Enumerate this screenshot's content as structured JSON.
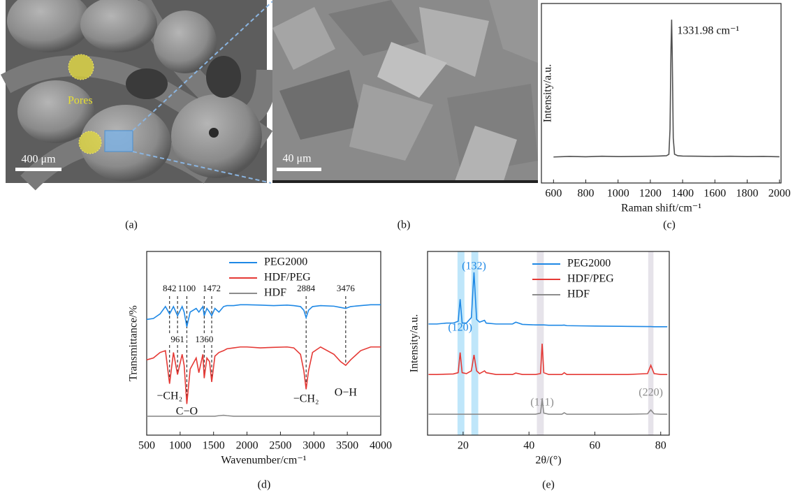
{
  "panel_labels": [
    "(a)",
    "(b)",
    "(c)",
    "(d)",
    "(e)"
  ],
  "images": [
    {
      "annotation": "Pores",
      "scale_bar": "400 μm"
    },
    {
      "scale_bar": "40 μm"
    }
  ],
  "chart_data": [
    {
      "type": "line",
      "xlabel": "Raman shift/cm⁻¹",
      "ylabel": "Intensity/a.u.",
      "color": "#505050",
      "x": [
        600,
        700,
        800,
        900,
        1000,
        1100,
        1200,
        1250,
        1300,
        1315,
        1322,
        1328,
        1332,
        1336,
        1342,
        1350,
        1370,
        1400,
        1500,
        1600,
        1700,
        1800,
        1900,
        2000
      ],
      "values": [
        14.5,
        14.8,
        14.6,
        14.9,
        14.7,
        14.8,
        14.9,
        15,
        15.2,
        16,
        30,
        75,
        91,
        70,
        25,
        16,
        15.2,
        15,
        14.9,
        14.8,
        14.9,
        14.7,
        14.8,
        14.6
      ],
      "xlim": [
        525,
        2010
      ],
      "ylim": [
        0,
        100
      ],
      "xticks": [
        600,
        800,
        1000,
        1200,
        1400,
        1600,
        1800,
        2000
      ],
      "annotations": [
        {
          "text": "1331.98 cm⁻¹",
          "x": 1331.98
        }
      ]
    },
    {
      "type": "line",
      "xlabel": "Wavenumber/cm⁻¹",
      "ylabel": "Transmittance/%",
      "x": [
        500,
        600,
        700,
        780,
        842,
        900,
        961,
        1030,
        1060,
        1100,
        1150,
        1240,
        1280,
        1340,
        1360,
        1400,
        1440,
        1472,
        1520,
        1580,
        1650,
        1700,
        1800,
        1900,
        2000,
        2200,
        2400,
        2600,
        2700,
        2800,
        2850,
        2884,
        2920,
        2980,
        3100,
        3300,
        3400,
        3476,
        3550,
        3700,
        3850,
        4000
      ],
      "series": [
        {
          "name": "PEG2000",
          "color": "#1e88e5",
          "values": [
            63,
            63.5,
            66,
            70,
            66,
            70,
            65,
            70,
            67,
            59,
            67,
            69,
            67,
            70,
            65,
            69,
            67,
            65,
            69,
            67,
            70,
            70.5,
            70.5,
            71,
            71,
            70.8,
            70.5,
            70.8,
            70.5,
            70,
            68,
            64,
            68,
            70,
            70.5,
            70.2,
            69.5,
            69,
            70,
            70.5,
            71,
            71
          ]
        },
        {
          "name": "HDF/PEG",
          "color": "#e53935",
          "values": [
            41,
            42,
            45,
            46,
            28,
            45,
            33,
            44,
            38,
            17,
            36,
            42,
            34,
            44,
            31,
            42,
            40,
            29,
            43,
            45,
            46,
            47,
            47.5,
            48,
            48,
            47.5,
            47.8,
            48,
            47.5,
            44,
            35,
            25,
            35,
            45,
            48,
            44,
            40,
            38,
            41,
            46,
            48,
            48
          ]
        },
        {
          "name": "HDF",
          "color": "#8c8c8c",
          "values": [
            10.3,
            10.3,
            10.3,
            10.3,
            10.3,
            10.3,
            10.3,
            10.3,
            10.3,
            10.3,
            10.3,
            10.3,
            10.3,
            10.3,
            10.3,
            10.3,
            10.3,
            10.3,
            10.3,
            10.6,
            10.8,
            10.6,
            10.3,
            10.3,
            10.3,
            10.3,
            10.3,
            10.3,
            10.3,
            10.3,
            10.3,
            10.3,
            10.3,
            10.3,
            10.3,
            10.3,
            10.3,
            10.3,
            10.3,
            10.3,
            10.3,
            10.3
          ]
        }
      ],
      "xlim": [
        500,
        4000
      ],
      "ylim": [
        0,
        100
      ],
      "xticks": [
        500,
        1000,
        1500,
        2000,
        2500,
        3000,
        3500,
        4000
      ],
      "peak_labels_top": [
        842,
        1100,
        1472,
        2884,
        3476
      ],
      "peak_labels_bottom": [
        961,
        1360
      ],
      "annotations": [
        {
          "text": "−CH₂",
          "x": 842
        },
        {
          "text": "C−O",
          "x": 1100
        },
        {
          "text": "−CH₂",
          "x": 2884
        },
        {
          "text": "O−H",
          "x": 3476
        }
      ]
    },
    {
      "type": "line",
      "xlabel": "2θ/(°)",
      "ylabel": "Intensity/a.u.",
      "x": [
        9.5,
        12,
        15,
        17,
        18.5,
        19.1,
        19.7,
        21,
        22.5,
        23.3,
        24.1,
        25,
        26.5,
        27,
        30,
        35,
        36,
        38,
        42,
        43.5,
        44,
        44.5,
        46,
        50,
        50.7,
        51.5,
        55,
        60,
        65,
        70,
        76,
        77,
        78,
        80,
        82
      ],
      "series": [
        {
          "name": "PEG2000",
          "color": "#1e88e5",
          "values": [
            60.5,
            60.5,
            61,
            61,
            62,
            74,
            61,
            61,
            64,
            88.6,
            63,
            61.5,
            62.5,
            61,
            60.5,
            60.5,
            61.5,
            60.3,
            60,
            60,
            60,
            60,
            59.8,
            59.8,
            59.9,
            59.6,
            59.5,
            59.4,
            59.3,
            59.2,
            59.1,
            59.1,
            59,
            59,
            59
          ]
        },
        {
          "name": "HDF/PEG",
          "color": "#e53935",
          "values": [
            33,
            33,
            33.2,
            33.3,
            34,
            45,
            34,
            33.5,
            35,
            43.7,
            35,
            33.5,
            35,
            34,
            33,
            33,
            33.8,
            33,
            33,
            33.5,
            49.8,
            34,
            33,
            33,
            34,
            33,
            33,
            33,
            33,
            33,
            33.5,
            38,
            33.5,
            33,
            33
          ]
        },
        {
          "name": "HDF",
          "color": "#8c8c8c",
          "values": [
            11.4,
            11.4,
            11.4,
            11.4,
            11.4,
            11.4,
            11.4,
            11.4,
            11.4,
            11.4,
            11.4,
            11.4,
            11.4,
            11.4,
            11.4,
            11.4,
            11.4,
            11.4,
            11.4,
            12,
            19.4,
            12,
            11.4,
            11.4,
            12.2,
            11.4,
            11.4,
            11.4,
            11.4,
            11.4,
            11.6,
            13.7,
            11.6,
            11.4,
            11.4
          ]
        }
      ],
      "xlim": [
        9.2,
        82.6
      ],
      "ylim": [
        0,
        100
      ],
      "xticks": [
        20,
        40,
        60,
        80
      ],
      "highlights": [
        {
          "range": [
            18.3,
            20.4
          ],
          "color": "#bfe6fa"
        },
        {
          "range": [
            22.5,
            24.6
          ],
          "color": "#bfe6fa"
        },
        {
          "range": [
            42.4,
            44.5
          ],
          "color": "#e6e3ea"
        },
        {
          "range": [
            76.2,
            77.8
          ],
          "color": "#e6e3ea"
        }
      ],
      "annotations": [
        {
          "text": "(120)",
          "x": 19.1,
          "color": "#1e88e5"
        },
        {
          "text": "(132)",
          "x": 23.3,
          "color": "#1e88e5"
        },
        {
          "text": "(111)",
          "x": 44,
          "color": "#8c8c8c"
        },
        {
          "text": "(220)",
          "x": 77,
          "color": "#8c8c8c"
        }
      ]
    }
  ]
}
